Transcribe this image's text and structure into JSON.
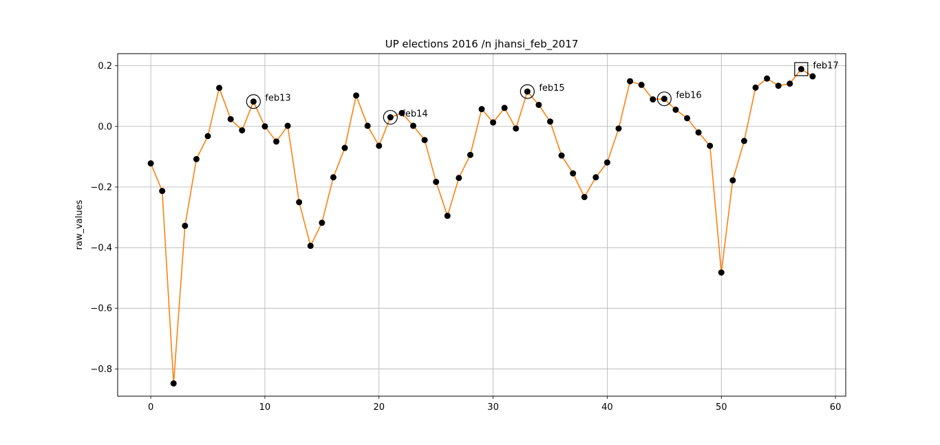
{
  "chart_data": {
    "type": "line",
    "title": "UP elections 2016 /n jhansi_feb_2017",
    "xlabel": "",
    "ylabel": "raw_values",
    "xlim": [
      -2.9,
      60.9
    ],
    "ylim": [
      -0.89,
      0.24
    ],
    "xticks": [
      0,
      10,
      20,
      30,
      40,
      50,
      60
    ],
    "yticks": [
      -0.8,
      -0.6,
      -0.4,
      -0.2,
      0.0,
      0.2
    ],
    "xtick_labels": [
      "0",
      "10",
      "20",
      "30",
      "40",
      "50",
      "60"
    ],
    "ytick_labels": [
      "−0.8",
      "−0.6",
      "−0.4",
      "−0.2",
      "0.0",
      "0.2"
    ],
    "grid": true,
    "line_color": "#ff7f0e",
    "marker_color": "#000000",
    "x": [
      0,
      1,
      2,
      3,
      4,
      5,
      6,
      7,
      8,
      9,
      10,
      11,
      12,
      13,
      14,
      15,
      16,
      17,
      18,
      19,
      20,
      21,
      22,
      23,
      24,
      25,
      26,
      27,
      28,
      29,
      30,
      31,
      32,
      33,
      34,
      35,
      36,
      37,
      38,
      39,
      40,
      41,
      42,
      43,
      44,
      45,
      46,
      47,
      48,
      49,
      50,
      51,
      52,
      53,
      54,
      55,
      56,
      57,
      58
    ],
    "values": [
      -0.122,
      -0.213,
      -0.848,
      -0.328,
      -0.108,
      -0.032,
      0.127,
      0.024,
      -0.013,
      0.082,
      0.0,
      -0.05,
      0.002,
      -0.25,
      -0.394,
      -0.318,
      -0.168,
      -0.071,
      0.102,
      0.002,
      -0.064,
      0.03,
      0.044,
      0.002,
      -0.045,
      -0.183,
      -0.295,
      -0.17,
      -0.094,
      0.057,
      0.013,
      0.061,
      -0.007,
      0.115,
      0.071,
      0.016,
      -0.096,
      -0.155,
      -0.233,
      -0.168,
      -0.119,
      -0.007,
      0.149,
      0.137,
      0.089,
      0.091,
      0.055,
      0.027,
      -0.02,
      -0.064,
      -0.482,
      -0.178,
      -0.048,
      0.128,
      0.158,
      0.134,
      0.141,
      0.189,
      0.165
    ],
    "annotations": [
      {
        "x": 9,
        "y": 0.082,
        "label": "feb13",
        "marker": "circle"
      },
      {
        "x": 21,
        "y": 0.03,
        "label": "feb14",
        "marker": "circle"
      },
      {
        "x": 33,
        "y": 0.115,
        "label": "feb15",
        "marker": "circle"
      },
      {
        "x": 45,
        "y": 0.091,
        "label": "feb16",
        "marker": "circle"
      },
      {
        "x": 57,
        "y": 0.189,
        "label": "feb17",
        "marker": "square"
      }
    ]
  }
}
